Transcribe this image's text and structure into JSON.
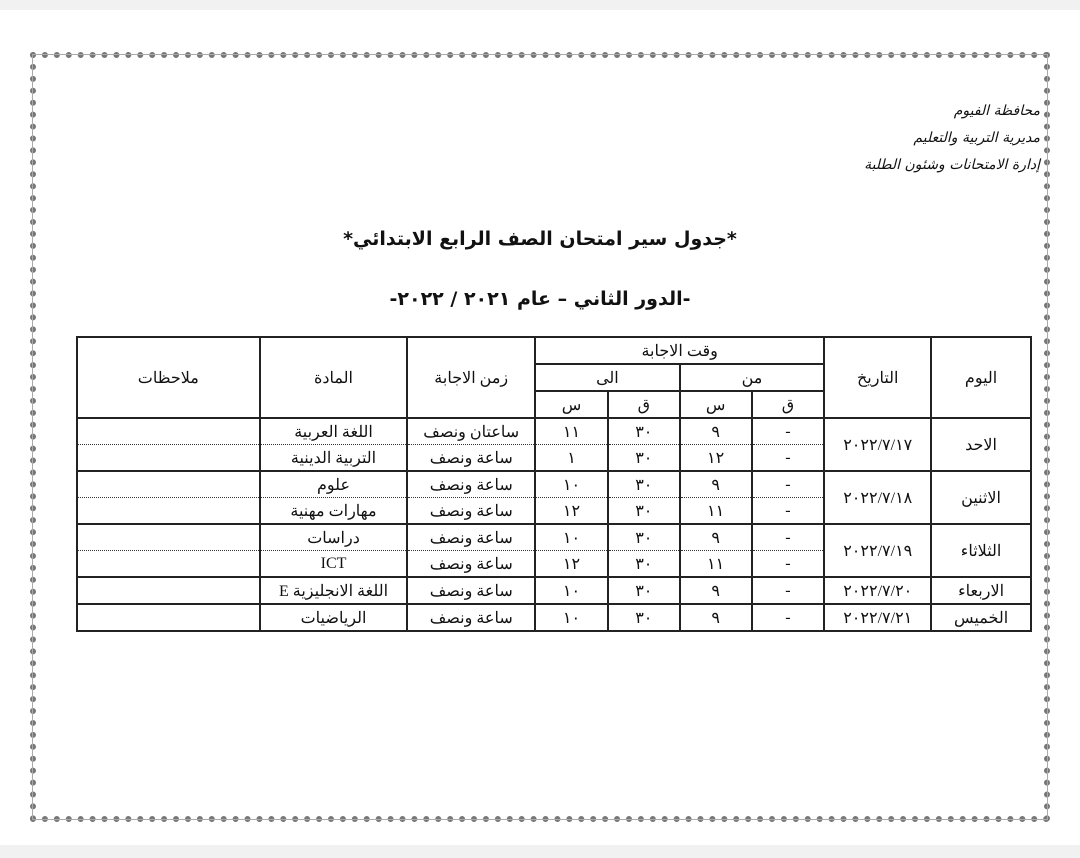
{
  "letterhead": [
    "محافظة الفيوم",
    "مديرية التربية والتعليم",
    "إدارة الامتحانات وشئون الطلبة"
  ],
  "title": "*جدول سير امتحان الصف الرابع الابتدائي*",
  "subtitle": "-الدور الثاني – عام ٢٠٢١ / ٢٠٢٢-",
  "headers": {
    "day": "اليوم",
    "date": "التاريخ",
    "answer_time": "وقت الاجابة",
    "from": "من",
    "to": "الى",
    "minute": "ق",
    "hour": "س",
    "duration": "زمن الاجابة",
    "subject": "المادة",
    "notes": "ملاحظات"
  },
  "rows": [
    {
      "day": "الاحد",
      "date": "٢٠٢٢/٧/١٧",
      "exams": [
        {
          "from_min": "-",
          "from_hour": "٩",
          "to_min": "٣٠",
          "to_hour": "١١",
          "duration": "ساعتان ونصف",
          "subject": "اللغة العربية"
        },
        {
          "from_min": "-",
          "from_hour": "١٢",
          "to_min": "٣٠",
          "to_hour": "١",
          "duration": "ساعة ونصف",
          "subject": "التربية الدينية"
        }
      ]
    },
    {
      "day": "الاثنين",
      "date": "٢٠٢٢/٧/١٨",
      "exams": [
        {
          "from_min": "-",
          "from_hour": "٩",
          "to_min": "٣٠",
          "to_hour": "١٠",
          "duration": "ساعة ونصف",
          "subject": "علوم"
        },
        {
          "from_min": "-",
          "from_hour": "١١",
          "to_min": "٣٠",
          "to_hour": "١٢",
          "duration": "ساعة ونصف",
          "subject": "مهارات مهنية"
        }
      ]
    },
    {
      "day": "الثلاثاء",
      "date": "٢٠٢٢/٧/١٩",
      "exams": [
        {
          "from_min": "-",
          "from_hour": "٩",
          "to_min": "٣٠",
          "to_hour": "١٠",
          "duration": "ساعة ونصف",
          "subject": "دراسات"
        },
        {
          "from_min": "-",
          "from_hour": "١١",
          "to_min": "٣٠",
          "to_hour": "١٢",
          "duration": "ساعة ونصف",
          "subject": "ICT"
        }
      ]
    },
    {
      "day": "الاربعاء",
      "date": "٢٠٢٢/٧/٢٠",
      "exams": [
        {
          "from_min": "-",
          "from_hour": "٩",
          "to_min": "٣٠",
          "to_hour": "١٠",
          "duration": "ساعة ونصف",
          "subject": "اللغة الانجليزية E"
        }
      ]
    },
    {
      "day": "الخميس",
      "date": "٢٠٢٢/٧/٢١",
      "exams": [
        {
          "from_min": "-",
          "from_hour": "٩",
          "to_min": "٣٠",
          "to_hour": "١٠",
          "duration": "ساعة ونصف",
          "subject": "الرياضيات"
        }
      ]
    }
  ]
}
